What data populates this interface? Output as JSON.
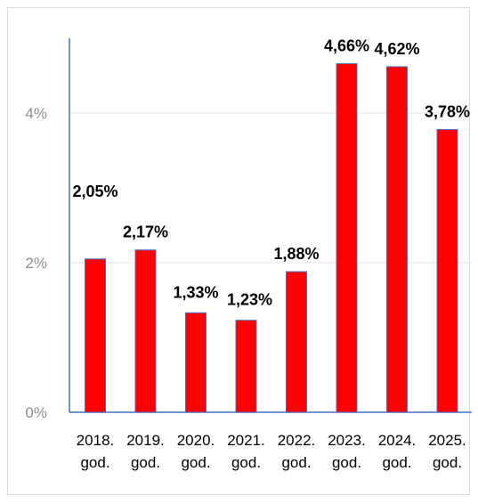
{
  "chart_data": {
    "type": "bar",
    "categories": [
      [
        "2018.",
        "god."
      ],
      [
        "2019.",
        "god."
      ],
      [
        "2020.",
        "god."
      ],
      [
        "2021.",
        "god."
      ],
      [
        "2022.",
        "god."
      ],
      [
        "2023.",
        "god."
      ],
      [
        "2024.",
        "god."
      ],
      [
        "2025.",
        "god."
      ]
    ],
    "values": [
      2.05,
      2.17,
      1.33,
      1.23,
      1.88,
      4.66,
      4.62,
      3.78
    ],
    "data_labels": [
      "2,05%",
      "2,17%",
      "1,33%",
      "1,23%",
      "1,88%",
      "4,66%",
      "4,62%",
      "3,78%"
    ],
    "y_ticks": [
      0,
      2,
      4
    ],
    "y_tick_labels": [
      "0%",
      "2%",
      "4%"
    ],
    "ylim": [
      0,
      5
    ],
    "grid": true,
    "legend": false,
    "bar_color": "#ff0000",
    "bar_border_color": "#4472c4",
    "axis_color": "#4472c4",
    "grid_color": "#e6e6e6"
  }
}
